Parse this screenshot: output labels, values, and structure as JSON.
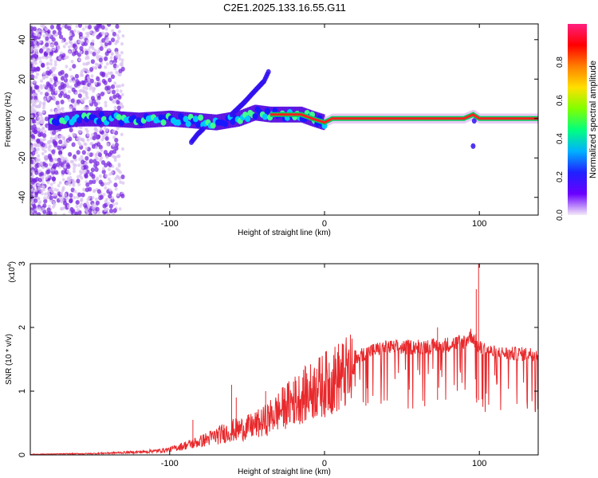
{
  "title": "C2E1.2025.133.16.55.G11",
  "chart_data": [
    {
      "type": "heatmap",
      "xlabel": "Height of straight line (km)",
      "ylabel": "Frequency (Hz)",
      "xlim": [
        -190,
        138
      ],
      "ylim": [
        -49,
        48
      ],
      "xticks": [
        -100,
        0,
        100
      ],
      "yticks": [
        -40,
        -20,
        0,
        20,
        40
      ],
      "colorbar": {
        "label": "Normalized spectral amplitude",
        "ticks": [
          "0.0",
          "0.2",
          "0.4",
          "0.6",
          "0.8"
        ],
        "range": [
          0,
          1
        ],
        "colors": [
          "#f5eaf8",
          "#6a00ff",
          "#2020ff",
          "#00b0ff",
          "#00ff80",
          "#80ff00",
          "#ffe000",
          "#ff8000",
          "#ff0000",
          "#ff2080"
        ]
      },
      "ridge": {
        "x": [
          -175,
          -160,
          -140,
          -120,
          -100,
          -85,
          -70,
          -55,
          -45,
          -35,
          -25,
          -15,
          -8,
          0,
          5,
          20,
          60,
          90,
          96,
          100,
          138
        ],
        "y": [
          -2,
          0,
          0,
          -1,
          0,
          -1,
          -2,
          0,
          3,
          2,
          2,
          2,
          0,
          -2,
          0,
          0,
          0,
          0,
          2,
          0,
          0
        ]
      },
      "spurs": [
        {
          "x": [
            -60,
            -52,
            -45,
            -39,
            -36
          ],
          "y": [
            2,
            8,
            14,
            19,
            24
          ]
        },
        {
          "x": [
            -86,
            -82,
            -78
          ],
          "y": [
            -12,
            -8,
            -5
          ]
        },
        {
          "x": [
            96,
            96.5,
            97
          ],
          "y": [
            -14,
            -6,
            6
          ]
        }
      ]
    },
    {
      "type": "line",
      "xlabel": "Height of straight line (km)",
      "ylabel": "SNR (10 * v/v)",
      "y_multiplier": "(x10",
      "y_exponent": "4",
      "xlim": [
        -190,
        138
      ],
      "ylim": [
        0,
        3
      ],
      "xticks": [
        -100,
        0,
        100
      ],
      "yticks": [
        0,
        1,
        2,
        3
      ],
      "color": "#e8292c",
      "envelope": {
        "x": [
          -190,
          -150,
          -115,
          -100,
          -80,
          -70,
          -60,
          -50,
          -40,
          -30,
          -20,
          -10,
          0,
          10,
          20,
          30,
          40,
          50,
          60,
          70,
          80,
          90,
          95,
          100,
          105,
          110,
          120,
          138
        ],
        "y": [
          0.01,
          0.02,
          0.05,
          0.1,
          0.25,
          0.35,
          0.45,
          0.5,
          0.6,
          0.8,
          1.0,
          1.15,
          1.3,
          1.45,
          1.55,
          1.65,
          1.7,
          1.7,
          1.72,
          1.72,
          1.75,
          1.8,
          1.9,
          1.7,
          1.65,
          1.62,
          1.6,
          1.6
        ]
      },
      "peaks": [
        {
          "x": -60,
          "y": 1.1
        },
        {
          "x": -57,
          "y": 0.9
        },
        {
          "x": -85,
          "y": 0.55
        },
        {
          "x": -38,
          "y": 1.0
        },
        {
          "x": -20,
          "y": 1.15
        },
        {
          "x": -5,
          "y": 1.35
        },
        {
          "x": 73,
          "y": 2.0
        },
        {
          "x": 98,
          "y": 2.6
        },
        {
          "x": 99.5,
          "y": 3.0
        }
      ]
    }
  ]
}
